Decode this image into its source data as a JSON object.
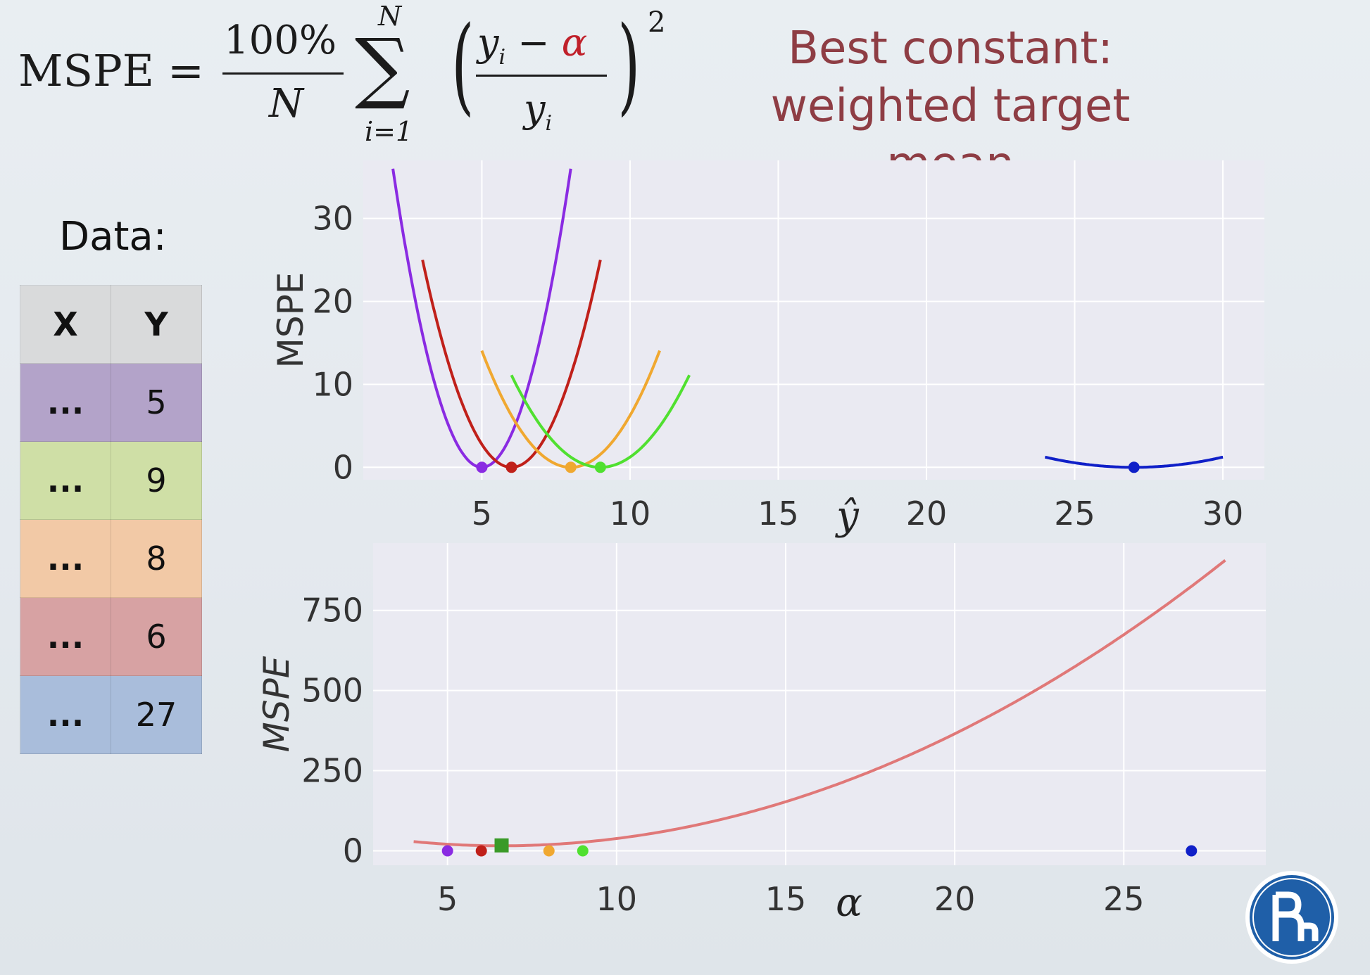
{
  "formula": {
    "lhs": "MSPE",
    "equals": "=",
    "numerator": "100%",
    "denominator": "N",
    "sum_top": "N",
    "sum_bottom": "i=1",
    "inner_num_y": "y",
    "inner_num_sub": "i",
    "inner_minus": "−",
    "inner_alpha": "α",
    "inner_den_y": "y",
    "inner_den_sub": "i",
    "exponent": "2"
  },
  "heading": {
    "line1": "Best constant:",
    "line2": "weighted target mean",
    "color": "#8e3d44"
  },
  "data_table": {
    "label": "Data:",
    "headers": [
      "X",
      "Y"
    ],
    "rows": [
      {
        "x": "...",
        "y": "5",
        "color": "#b3a3c9"
      },
      {
        "x": "...",
        "y": "9",
        "color": "#cfdfa6"
      },
      {
        "x": "...",
        "y": "8",
        "color": "#f2c9a6"
      },
      {
        "x": "...",
        "y": "6",
        "color": "#d7a2a3"
      },
      {
        "x": "...",
        "y": "27",
        "color": "#a9bddb"
      }
    ]
  },
  "chart_data": [
    {
      "type": "line",
      "ylabel": "MSPE",
      "xlabel": "ŷ",
      "xlim": [
        1,
        31.4
      ],
      "ylim": [
        -1.5,
        37
      ],
      "xticks": [
        "5",
        "10",
        "15",
        "20",
        "25",
        "30"
      ],
      "yticks": [
        "0",
        "10",
        "20",
        "30"
      ],
      "grid": true,
      "series": [
        {
          "target": 5,
          "color": "#8a2be2",
          "x_range": [
            2,
            8
          ],
          "minimum": [
            5,
            0
          ]
        },
        {
          "target": 6,
          "color": "#c0201a",
          "x_range": [
            3,
            9
          ],
          "minimum": [
            6,
            0
          ]
        },
        {
          "target": 8,
          "color": "#f0a830",
          "x_range": [
            5,
            11
          ],
          "minimum": [
            8,
            0
          ]
        },
        {
          "target": 9,
          "color": "#50e030",
          "x_range": [
            6,
            12
          ],
          "minimum": [
            9,
            0
          ]
        },
        {
          "target": 27,
          "color": "#1020c8",
          "x_range": [
            24,
            30
          ],
          "minimum": [
            27,
            0
          ]
        }
      ]
    },
    {
      "type": "line",
      "ylabel": "MSPE",
      "xlabel": "α",
      "xlim": [
        2.8,
        29.2
      ],
      "ylim": [
        -45,
        960
      ],
      "xticks": [
        "5",
        "10",
        "15",
        "20",
        "25"
      ],
      "yticks": [
        "0",
        "250",
        "500",
        "750"
      ],
      "grid": true,
      "curve": {
        "color": "#e07878",
        "x_range": [
          4,
          28
        ],
        "formula": "sum of per-target squared percentage errors"
      },
      "points": [
        {
          "x": 5,
          "y": 0,
          "color": "#8a2be2",
          "marker": "circle"
        },
        {
          "x": 6,
          "y": 0,
          "color": "#c0201a",
          "marker": "circle"
        },
        {
          "x": 8,
          "y": 0,
          "color": "#f0a830",
          "marker": "circle"
        },
        {
          "x": 9,
          "y": 0,
          "color": "#50e030",
          "marker": "circle"
        },
        {
          "x": 27,
          "y": 0,
          "color": "#1020c8",
          "marker": "circle"
        },
        {
          "x": 6.6,
          "y": 17,
          "color": "#3a9a28",
          "marker": "square"
        }
      ]
    }
  ]
}
